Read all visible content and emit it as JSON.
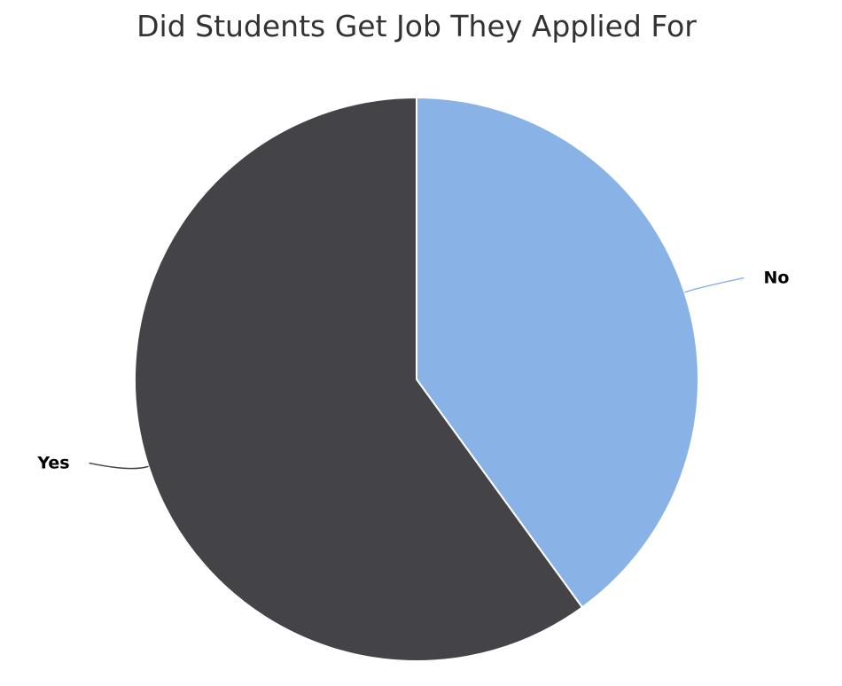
{
  "chart_data": {
    "type": "pie",
    "title": "Did Students Get Job They Applied For",
    "slices": [
      {
        "label": "No",
        "value": 40,
        "color": "#89b3e6"
      },
      {
        "label": "Yes",
        "value": 60,
        "color": "#434348"
      }
    ],
    "start_angle_deg": 0,
    "direction": "clockwise",
    "slice_border_color": "#ffffff",
    "legend": "none"
  }
}
